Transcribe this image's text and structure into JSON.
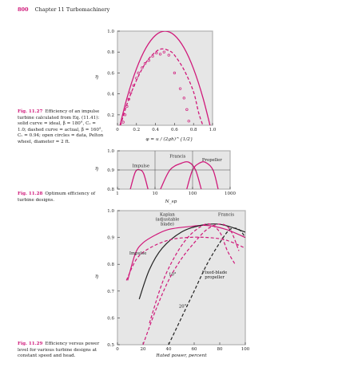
{
  "header": {
    "page_number": "800",
    "chapter_title": "Chapter 11 Turbomachinery"
  },
  "colors": {
    "accent": "#d0197a",
    "plot_bg": "#e6e6e6",
    "frame": "#b0b0b0",
    "black_curve": "#222222"
  },
  "captions": [
    {
      "label": "Fig. 11.27",
      "text": "Efficiency of an impulse turbine calculated from Eq. (11.41): solid curve = ideal, β = 180°, Cᵥ = 1.0; dashed curve = actual, β = 160°, Cᵥ = 0.94; open circles = data, Pelton wheel, diameter = 2 ft."
    },
    {
      "label": "Fig. 11.28",
      "text": "Optimum efficiency of turbine designs."
    },
    {
      "label": "Fig. 11.29",
      "text": "Efficiency versus power level for various turbine designs at constant speed and head."
    }
  ],
  "chart_data": [
    {
      "type": "line",
      "ylabel": "η",
      "xlabel": "φ = u / (2gh)^{1/2}",
      "xlim": [
        0,
        1.0
      ],
      "ylim": [
        0.1,
        1.0
      ],
      "x_ticks": [
        "0",
        "0.2",
        "0.4",
        "0.6",
        "0.8",
        "1.0"
      ],
      "y_ticks": [
        "0.2",
        "0.4",
        "0.6",
        "0.8",
        "1.0"
      ],
      "series": [
        {
          "style": "solid",
          "x": [
            0.0,
            0.1,
            0.2,
            0.3,
            0.4,
            0.5,
            0.6,
            0.7,
            0.8,
            0.9,
            1.0
          ],
          "y": [
            0.0,
            0.36,
            0.64,
            0.84,
            0.96,
            1.0,
            0.96,
            0.84,
            0.64,
            0.36,
            0.0
          ]
        },
        {
          "style": "dashed",
          "x": [
            0.0,
            0.1,
            0.2,
            0.3,
            0.4,
            0.47,
            0.55,
            0.6,
            0.7,
            0.8,
            0.86,
            0.94
          ],
          "y": [
            0.0,
            0.3,
            0.53,
            0.7,
            0.8,
            0.83,
            0.81,
            0.77,
            0.63,
            0.42,
            0.2,
            0.0
          ]
        },
        {
          "style": "circles",
          "x": [
            0.06,
            0.08,
            0.1,
            0.12,
            0.14,
            0.17,
            0.2,
            0.22,
            0.26,
            0.29,
            0.33,
            0.37,
            0.41,
            0.45,
            0.49,
            0.54,
            0.6,
            0.66,
            0.7,
            0.73,
            0.75
          ],
          "y": [
            0.13,
            0.2,
            0.28,
            0.35,
            0.41,
            0.48,
            0.55,
            0.6,
            0.65,
            0.69,
            0.72,
            0.76,
            0.79,
            0.78,
            0.8,
            0.77,
            0.6,
            0.45,
            0.36,
            0.25,
            0.14
          ]
        }
      ]
    },
    {
      "type": "line",
      "ylabel": "η",
      "xlabel": "N_sp",
      "xscale": "log",
      "xlim": [
        1,
        1000
      ],
      "ylim": [
        0.8,
        1.0
      ],
      "x_ticks": [
        "1",
        "10",
        "100",
        "1000"
      ],
      "y_ticks": [
        "0.8",
        "0.9",
        "1.0"
      ],
      "annotations": [
        "Impulse",
        "Francis",
        "Propeller"
      ],
      "series": [
        {
          "name": "Impulse",
          "x": [
            2.2,
            3,
            4,
            5,
            6.5
          ],
          "y": [
            0.8,
            0.89,
            0.9,
            0.88,
            0.8
          ]
        },
        {
          "name": "Francis",
          "x": [
            14,
            25,
            50,
            80,
            120,
            170
          ],
          "y": [
            0.8,
            0.9,
            0.935,
            0.94,
            0.9,
            0.8
          ]
        },
        {
          "name": "Propeller",
          "x": [
            70,
            100,
            150,
            220,
            350,
            480
          ],
          "y": [
            0.8,
            0.9,
            0.935,
            0.94,
            0.9,
            0.8
          ]
        }
      ]
    },
    {
      "type": "line",
      "ylabel": "η",
      "xlabel": "Rated power, percent",
      "xlim": [
        0,
        100
      ],
      "ylim": [
        0.5,
        1.0
      ],
      "x_ticks": [
        "0",
        "20",
        "40",
        "60",
        "80",
        "100"
      ],
      "y_ticks": [
        "0.5",
        "0.6",
        "0.7",
        "0.8",
        "0.9",
        "1.0"
      ],
      "annotations": [
        "Kaplan (adjustable blade)",
        "Francis",
        "Impulse",
        "Fixed-blade propeller",
        "10°",
        "20°"
      ],
      "series": [
        {
          "name": "Kaplan",
          "style": "solid",
          "color": "accent",
          "x": [
            8,
            14,
            20,
            30,
            40,
            55,
            70,
            85,
            100
          ],
          "y": [
            0.74,
            0.84,
            0.88,
            0.91,
            0.93,
            0.94,
            0.945,
            0.93,
            0.9
          ]
        },
        {
          "name": "Francis",
          "style": "solid",
          "color": "black",
          "x": [
            17,
            25,
            35,
            50,
            65,
            78,
            88,
            100
          ],
          "y": [
            0.67,
            0.78,
            0.86,
            0.92,
            0.945,
            0.95,
            0.94,
            0.92
          ]
        },
        {
          "name": "Impulse",
          "style": "dashed",
          "color": "accent",
          "x": [
            7,
            15,
            25,
            40,
            55,
            70,
            85,
            100
          ],
          "y": [
            0.74,
            0.82,
            0.86,
            0.89,
            0.9,
            0.9,
            0.89,
            0.86
          ]
        },
        {
          "name": "Fixed-blade propeller",
          "style": "dashed",
          "color": "accent",
          "x": [
            25,
            35,
            45,
            55,
            65,
            72,
            80,
            86,
            92
          ],
          "y": [
            0.58,
            0.73,
            0.83,
            0.9,
            0.94,
            0.95,
            0.92,
            0.85,
            0.8
          ]
        },
        {
          "name": "10°",
          "style": "dashed",
          "color": "accent",
          "x": [
            20,
            30,
            40,
            50,
            60,
            70,
            80,
            88,
            95
          ],
          "y": [
            0.5,
            0.63,
            0.74,
            0.82,
            0.88,
            0.93,
            0.95,
            0.93,
            0.85
          ]
        },
        {
          "name": "20°",
          "style": "dashed",
          "color": "black",
          "x": [
            40,
            50,
            60,
            70,
            80,
            88,
            95,
            100
          ],
          "y": [
            0.5,
            0.6,
            0.7,
            0.8,
            0.88,
            0.93,
            0.93,
            0.9
          ]
        }
      ]
    }
  ]
}
